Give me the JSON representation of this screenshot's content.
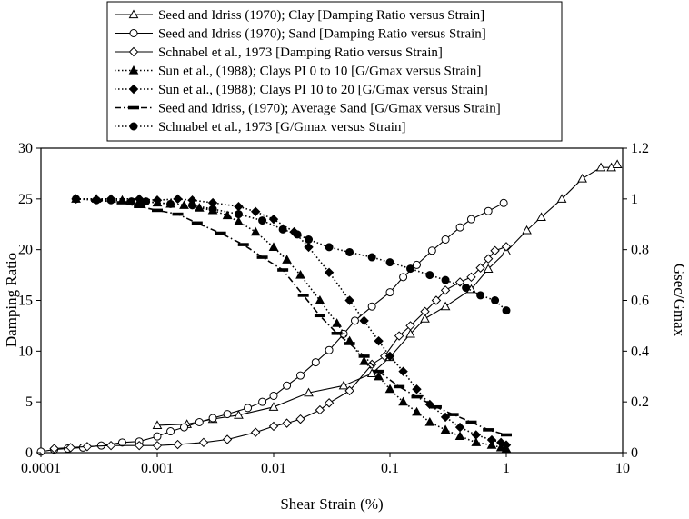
{
  "chart_data": {
    "type": "line",
    "xlabel": "Shear Strain (%)",
    "ylabel": "Damping Ratio",
    "y2label": "Gsec/Gmax",
    "x_scale": "log",
    "xlim": [
      0.0001,
      10
    ],
    "ylim": [
      0,
      30
    ],
    "y2lim": [
      0,
      1.2
    ],
    "grid": false,
    "legend_position": "top",
    "x_ticks": [
      "0.0001",
      "0.001",
      "0.01",
      "0.1",
      "1",
      "10"
    ],
    "y_ticks": [
      "0",
      "5",
      "10",
      "15",
      "20",
      "25",
      "30"
    ],
    "y2_ticks": [
      "0",
      "0.2",
      "0.4",
      "0.6",
      "0.8",
      "1",
      "1.2"
    ],
    "series": [
      {
        "name": "Seed and Idriss (1970); Clay  [Damping Ratio versus Strain]",
        "axis": "left",
        "marker": "triangle-open",
        "line": "solid",
        "color": "#000000",
        "x": [
          0.001,
          0.0018,
          0.003,
          0.005,
          0.01,
          0.02,
          0.04,
          0.07,
          0.1,
          0.15,
          0.2,
          0.3,
          0.5,
          0.7,
          1,
          1.5,
          2,
          3,
          4.5,
          6.5,
          8,
          9
        ],
        "y": [
          2.7,
          2.8,
          3.3,
          3.7,
          4.5,
          5.9,
          6.6,
          7.8,
          9.4,
          11.7,
          13.2,
          14.4,
          16.1,
          18.1,
          19.8,
          21.9,
          23.2,
          25,
          27,
          28.1,
          28.1,
          28.4
        ]
      },
      {
        "name": "Seed and Idriss (1970); Sand [Damping Ratio versus Strain]",
        "axis": "left",
        "marker": "circle-open",
        "line": "solid",
        "color": "#000000",
        "x": [
          0.0001,
          0.00013,
          0.00017,
          0.00023,
          0.00033,
          0.0005,
          0.0007,
          0.001,
          0.0013,
          0.0017,
          0.0023,
          0.003,
          0.004,
          0.006,
          0.008,
          0.01,
          0.013,
          0.017,
          0.023,
          0.03,
          0.04,
          0.05,
          0.07,
          0.1,
          0.13,
          0.17,
          0.23,
          0.3,
          0.4,
          0.5,
          0.7,
          0.95
        ],
        "y": [
          0.1,
          0.3,
          0.4,
          0.5,
          0.7,
          1,
          1.1,
          1.6,
          2.1,
          2.5,
          3,
          3.4,
          3.8,
          4.4,
          5,
          5.6,
          6.6,
          7.6,
          8.9,
          10.1,
          11.7,
          13,
          14.4,
          15.8,
          17.3,
          18.5,
          19.9,
          21,
          22.2,
          23,
          23.8,
          24.6
        ]
      },
      {
        "name": "Schnabel et al., 1973 [Damping Ratio versus Strain]",
        "axis": "left",
        "marker": "diamond-open",
        "line": "solid",
        "color": "#000000",
        "x": [
          0.00013,
          0.00018,
          0.00025,
          0.0004,
          0.0007,
          0.001,
          0.0015,
          0.0025,
          0.004,
          0.007,
          0.01,
          0.013,
          0.017,
          0.025,
          0.03,
          0.045,
          0.07,
          0.09,
          0.12,
          0.15,
          0.2,
          0.25,
          0.3,
          0.4,
          0.5,
          0.6,
          0.7,
          0.8,
          1
        ],
        "y": [
          0.4,
          0.5,
          0.6,
          0.7,
          0.7,
          0.7,
          0.8,
          1,
          1.3,
          2,
          2.6,
          2.9,
          3.3,
          4.2,
          4.9,
          6.1,
          8.7,
          9.5,
          11.5,
          12.5,
          13.9,
          15,
          16,
          16.8,
          17.3,
          18.2,
          19.1,
          19.9,
          20.3
        ]
      },
      {
        "name": "Sun et al., (1988); Clays PI 0 to 10 [G/Gmax versus Strain]",
        "axis": "right",
        "marker": "triangle-filled",
        "line": "dotted",
        "color": "#000000",
        "x": [
          0.0002,
          0.0003,
          0.0005,
          0.0007,
          0.001,
          0.0013,
          0.0017,
          0.0023,
          0.003,
          0.004,
          0.005,
          0.007,
          0.01,
          0.013,
          0.017,
          0.025,
          0.035,
          0.045,
          0.06,
          0.08,
          0.1,
          0.13,
          0.17,
          0.22,
          0.3,
          0.4,
          0.55,
          0.75,
          0.9,
          1
        ],
        "y": [
          1.0,
          1.0,
          0.995,
          0.99,
          0.985,
          0.98,
          0.975,
          0.965,
          0.955,
          0.935,
          0.91,
          0.87,
          0.81,
          0.76,
          0.7,
          0.6,
          0.51,
          0.44,
          0.36,
          0.3,
          0.25,
          0.2,
          0.16,
          0.12,
          0.09,
          0.065,
          0.04,
          0.03,
          0.02,
          0.015
        ]
      },
      {
        "name": "Sun et al., (1988); Clays PI 10 to 20 [G/Gmax versus Strain]",
        "axis": "right",
        "marker": "diamond-filled",
        "line": "dotted",
        "color": "#000000",
        "x": [
          0.0002,
          0.0004,
          0.0007,
          0.001,
          0.0015,
          0.002,
          0.003,
          0.005,
          0.007,
          0.01,
          0.015,
          0.02,
          0.03,
          0.045,
          0.06,
          0.08,
          0.1,
          0.13,
          0.17,
          0.22,
          0.3,
          0.4,
          0.55,
          0.75,
          0.9,
          1
        ],
        "y": [
          1.0,
          1.0,
          1.0,
          0.995,
          1.0,
          0.995,
          0.985,
          0.97,
          0.95,
          0.92,
          0.87,
          0.81,
          0.71,
          0.6,
          0.52,
          0.44,
          0.38,
          0.32,
          0.25,
          0.19,
          0.14,
          0.1,
          0.07,
          0.05,
          0.04,
          0.03
        ]
      },
      {
        "name": "Seed and Idriss, (1970); Average Sand [G/Gmax versus Strain]",
        "axis": "right",
        "marker": "dash",
        "line": "dashdot",
        "color": "#000000",
        "x": [
          0.0003,
          0.0005,
          0.0007,
          0.001,
          0.0015,
          0.0022,
          0.0035,
          0.0055,
          0.008,
          0.012,
          0.018,
          0.025,
          0.035,
          0.045,
          0.06,
          0.08,
          0.12,
          0.17,
          0.25,
          0.35,
          0.5,
          0.7,
          1
        ],
        "y": [
          0.995,
          0.985,
          0.97,
          0.955,
          0.94,
          0.905,
          0.865,
          0.82,
          0.77,
          0.72,
          0.62,
          0.54,
          0.47,
          0.43,
          0.38,
          0.32,
          0.26,
          0.22,
          0.18,
          0.15,
          0.12,
          0.09,
          0.07
        ]
      },
      {
        "name": "Schnabel et al., 1973 [G/Gmax versus Strain]",
        "axis": "right",
        "marker": "circle-filled",
        "line": "dotted",
        "color": "#000000",
        "x": [
          0.0002,
          0.0003,
          0.0004,
          0.0006,
          0.0008,
          0.0013,
          0.002,
          0.003,
          0.005,
          0.008,
          0.012,
          0.016,
          0.02,
          0.03,
          0.045,
          0.07,
          0.1,
          0.15,
          0.22,
          0.3,
          0.45,
          0.6,
          0.8,
          1
        ],
        "y": [
          1.0,
          0.995,
          0.995,
          0.99,
          0.99,
          0.98,
          0.975,
          0.96,
          0.94,
          0.915,
          0.88,
          0.86,
          0.84,
          0.81,
          0.79,
          0.77,
          0.75,
          0.725,
          0.7,
          0.68,
          0.65,
          0.62,
          0.6,
          0.56
        ]
      }
    ]
  }
}
